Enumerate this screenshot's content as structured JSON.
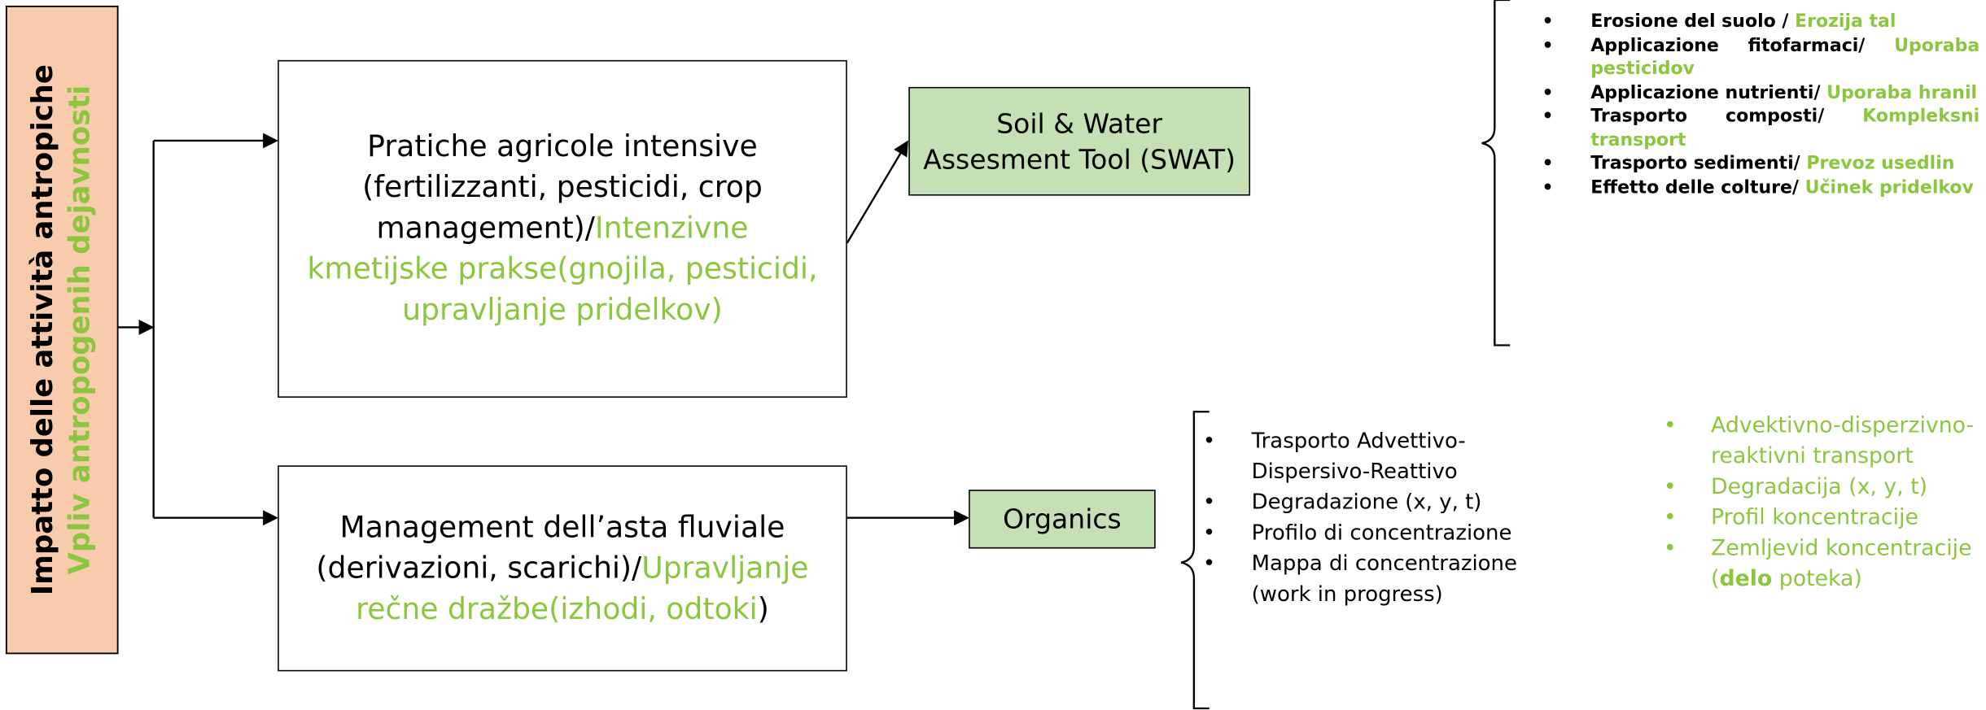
{
  "left_box": {
    "line1": "Impatto delle attività antropiche",
    "line2": "Vpliv antropogenih dejavnosti"
  },
  "agri_box": {
    "text_it": "Pratiche agricole intensive (fertilizzanti, pesticidi, crop management)/",
    "text_sl": "Intenzivne kmetijske prakse(gnojila, pesticidi, upravljanje pridelkov)"
  },
  "river_box": {
    "text_it": "Management dell’asta fluviale (derivazioni, scarichi)/",
    "text_sl": "Upravljanje rečne dražbe(izhodi, odtoki",
    "text_end": ")"
  },
  "swat_box": {
    "text": "Soil & Water Assesment Tool (SWAT)"
  },
  "organics_box": {
    "text": "Organics"
  },
  "swat_list": [
    {
      "it": "Erosione del suolo / ",
      "sl": "Erozija tal"
    },
    {
      "it": "Applicazione fitofarmaci/ ",
      "sl": "Uporaba pesticidov"
    },
    {
      "it": "Applicazione nutrienti/ ",
      "sl": "Uporaba hranil"
    },
    {
      "it": "Trasporto composti/ ",
      "sl": "Kompleksni transport"
    },
    {
      "it": "Trasporto sedimenti/ ",
      "sl": "Prevoz usedlin"
    },
    {
      "it": "Effetto delle colture/ ",
      "sl": "Učinek pridelkov"
    }
  ],
  "organics_list_it": [
    "Trasporto Advettivo-Dispersivo-Reattivo",
    "Degradazione (x, y, t)",
    "Profilo di concentrazione",
    "Mappa di concentrazione (work in progress)"
  ],
  "organics_list_sl": [
    [
      "Advektivno-disperzivno-reaktivni transport"
    ],
    [
      "Degradacija (x, y, t)"
    ],
    [
      "Profil koncentracije"
    ],
    [
      "Zemljevid koncentracije (",
      "delo",
      " poteka)"
    ]
  ]
}
